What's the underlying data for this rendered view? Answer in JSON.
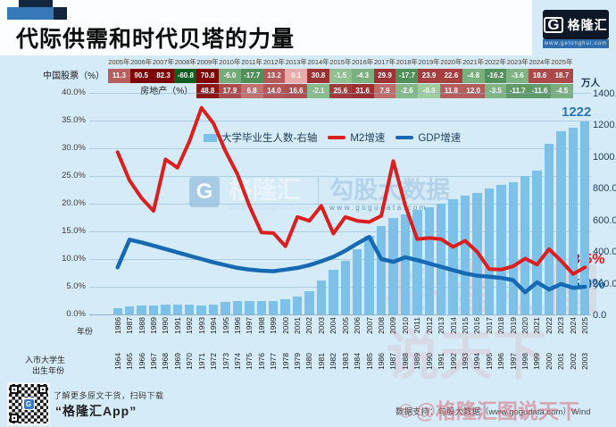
{
  "header": {
    "title": "代际供需和时代贝塔的力量",
    "logo": {
      "g": "G",
      "brand": "格隆汇",
      "url": "www.gelonghui.com"
    }
  },
  "table": {
    "years": [
      "2005年",
      "2006年",
      "2007年",
      "2008年",
      "2009年",
      "2010年",
      "2011年",
      "2012年",
      "2013年",
      "2014年",
      "2015年",
      "2016年",
      "2017年",
      "2018年",
      "2019年",
      "2020年",
      "2021年",
      "2022年",
      "2023年",
      "2024年",
      "2025年"
    ],
    "rows": [
      {
        "label": "中国股票（%）",
        "start_col": 0,
        "values": [
          11.3,
          90.5,
          82.3,
          -60.8,
          70.8,
          -6.0,
          -17.7,
          13.2,
          0.1,
          30.8,
          -1.5,
          -4.3,
          29.9,
          -17.7,
          23.9,
          22.6,
          -4.8,
          -16.2,
          -3.6,
          18.6,
          18.7
        ]
      },
      {
        "label": "房地产（%）",
        "start_col": 4,
        "values": [
          48.8,
          17.9,
          6.8,
          14.0,
          16.6,
          -2.1,
          25.6,
          31.6,
          7.9,
          -2.6,
          -0.3,
          11.8,
          12.0,
          -3.5,
          -11.7,
          -11.6,
          -4.5
        ]
      }
    ]
  },
  "chart_data": {
    "type": "combo-bar-line",
    "x_years": [
      1986,
      1987,
      1988,
      1989,
      1990,
      1991,
      1992,
      1993,
      1994,
      1995,
      1996,
      1997,
      1998,
      1999,
      2000,
      2001,
      2002,
      2003,
      2004,
      2005,
      2006,
      2007,
      2008,
      2009,
      2010,
      2011,
      2012,
      2013,
      2014,
      2015,
      2016,
      2017,
      2018,
      2019,
      2020,
      2021,
      2022,
      2023,
      2024,
      2025
    ],
    "birth_years": [
      1964,
      1965,
      1966,
      1967,
      1968,
      1969,
      1970,
      1971,
      1972,
      1973,
      1974,
      1975,
      1976,
      1977,
      1978,
      1979,
      1980,
      1981,
      1982,
      1983,
      1984,
      1985,
      1986,
      1987,
      1988,
      1989,
      1990,
      1991,
      1992,
      1993,
      1994,
      1995,
      1996,
      1997,
      1998,
      1999,
      2000,
      2001,
      2002,
      2003
    ],
    "left_axis": {
      "min": 0,
      "max": 40,
      "ticks": [
        "40.0%",
        "35.0%",
        "30.0%",
        "25.0%",
        "20.0%",
        "15.0%",
        "10.0%",
        "5.0%",
        "0.0%"
      ]
    },
    "right_axis": {
      "unit": "万人",
      "min": 0,
      "max": 1400,
      "ticks": [
        "1400.0",
        "1200.0",
        "1000.0",
        "800.0",
        "600.0",
        "400.0",
        "200.0",
        "0.0"
      ]
    },
    "series": [
      {
        "name": "大学毕业生人数-右轴",
        "type": "bar",
        "axis": "right",
        "color": "#7dc1e8",
        "values": [
          39,
          53,
          55,
          58,
          61,
          61,
          60,
          57,
          64,
          80,
          84,
          83,
          83,
          85,
          95,
          114,
          145,
          212,
          280,
          338,
          413,
          495,
          559,
          611,
          631,
          660,
          680,
          699,
          727,
          749,
          765,
          795,
          820,
          834,
          874,
          909,
          1076,
          1158,
          1179,
          1222
        ]
      },
      {
        "name": "M2增速",
        "type": "line",
        "axis": "left",
        "color": "#dc1e1e",
        "values": [
          29.3,
          24.2,
          21.0,
          18.7,
          28.0,
          26.5,
          31.3,
          37.3,
          34.5,
          29.5,
          25.3,
          19.6,
          14.8,
          14.7,
          12.3,
          17.6,
          16.9,
          19.6,
          14.6,
          17.6,
          16.9,
          16.7,
          17.8,
          27.7,
          19.7,
          13.6,
          13.8,
          13.6,
          12.2,
          13.3,
          11.3,
          8.2,
          8.1,
          8.7,
          10.1,
          9.0,
          11.8,
          9.7,
          7.3,
          8.5
        ]
      },
      {
        "name": "GDP增速",
        "type": "line",
        "axis": "left",
        "color": "#1769b3",
        "values": [
          8.5,
          13.5,
          13.0,
          12.4,
          11.8,
          11.2,
          10.6,
          10.0,
          9.4,
          8.9,
          8.4,
          8.1,
          7.9,
          7.8,
          8.1,
          8.4,
          8.9,
          9.6,
          10.4,
          11.5,
          12.8,
          14.0,
          10.0,
          9.5,
          10.3,
          9.8,
          9.2,
          8.6,
          8.0,
          7.4,
          7.0,
          6.8,
          6.6,
          6.2,
          4.0,
          5.8,
          4.5,
          5.5,
          4.8,
          5.0
        ]
      }
    ],
    "annotations": {
      "bar_end_label": "1222",
      "m2_end_label": "8.5%",
      "gdp_end_label": "5.0%"
    },
    "x_axis_titles": {
      "row1": "年份",
      "row2_line1": "入市大学生",
      "row2_line2": "出生年份"
    }
  },
  "watermark": {
    "g": "G",
    "brand": "格隆汇",
    "brand_url": "www.gelonghui.com",
    "partner": "勾股大数据",
    "partner_url": "www.gogudata.com"
  },
  "footer": {
    "qr_caption": "了解更多原文干货，扫码下载",
    "app_name": "“格隆汇App”",
    "data_support": "数据支持：勾股大数据（www.gogudata.com）Wind",
    "watermark_mark": "◎",
    "watermark_text": "@格隆汇图说天下",
    "watermark_big": "格隆汇图说天下"
  }
}
